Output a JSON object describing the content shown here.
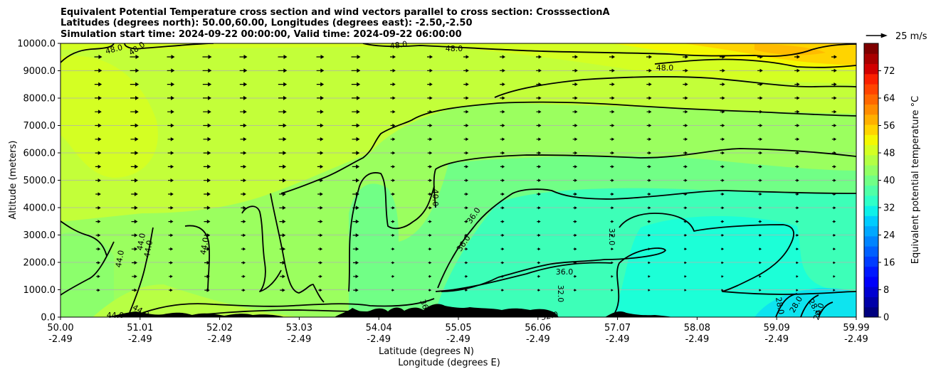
{
  "chart_data": {
    "type": "contour",
    "title_lines": [
      "Equivalent Potential Temperature cross section and wind vectors parallel to cross section: CrosssectionA",
      "Latitudes (degrees north): 50.00,60.00, Longitudes (degrees east): -2.50,-2.50",
      "Simulation start time: 2024-09-22 00:00:00, Valid time: 2024-09-22 06:00:00"
    ],
    "ylabel": "Altitude (meters)",
    "xlabel": "Latitude (degrees N)",
    "xlabel2": "Longitude (degrees E)",
    "ylim": [
      0,
      10000
    ],
    "xlim": [
      50.0,
      59.99
    ],
    "y_ticks": [
      "0.0",
      "1000.0",
      "2000.0",
      "3000.0",
      "4000.0",
      "5000.0",
      "6000.0",
      "7000.0",
      "8000.0",
      "9000.0",
      "10000.0"
    ],
    "x_ticks": [
      {
        "lat": "50.00",
        "lon": "-2.49"
      },
      {
        "lat": "51.01",
        "lon": "-2.49"
      },
      {
        "lat": "52.02",
        "lon": "-2.49"
      },
      {
        "lat": "53.03",
        "lon": "-2.49"
      },
      {
        "lat": "54.04",
        "lon": "-2.49"
      },
      {
        "lat": "55.05",
        "lon": "-2.49"
      },
      {
        "lat": "56.06",
        "lon": "-2.49"
      },
      {
        "lat": "57.07",
        "lon": "-2.49"
      },
      {
        "lat": "58.08",
        "lon": "-2.49"
      },
      {
        "lat": "59.09",
        "lon": "-2.49"
      },
      {
        "lat": "59.99",
        "lon": "-2.49"
      }
    ],
    "grid": "horizontal",
    "colorbar": {
      "label": "Equivalent potential temperature $^\\circ$C",
      "label_display": "Equivalent potential temperature °C",
      "min": 0,
      "max": 80,
      "ticks": [
        "0",
        "8",
        "16",
        "24",
        "32",
        "40",
        "48",
        "56",
        "64",
        "72"
      ],
      "colors": [
        "#00007f",
        "#0000a8",
        "#0000d1",
        "#0000fa",
        "#0018ff",
        "#003cff",
        "#0060ff",
        "#0084ff",
        "#00a8ff",
        "#00ccff",
        "#0ef0e9",
        "#2fffc8",
        "#50ffa7",
        "#71ff86",
        "#92ff65",
        "#b3ff44",
        "#d4ff23",
        "#f4f802",
        "#ffd400",
        "#ffb000",
        "#ff8c00",
        "#ff6800",
        "#ff4400",
        "#fa2000",
        "#d10000",
        "#a80000",
        "#7f0000"
      ]
    },
    "quiver_key": {
      "label": "25 m/s",
      "value": 25
    },
    "contour_labels": [
      "48.0",
      "48.0",
      "48.0",
      "48.0",
      "48.0",
      "40.0",
      "36.0",
      "36.0",
      "36.0",
      "32.0",
      "32.0",
      "32.0",
      "44.0",
      "44.0",
      "44.0",
      "44.0",
      "44.0",
      "44.0",
      "36.0",
      "28.0",
      "28.0",
      "28.0",
      "24.0"
    ]
  }
}
